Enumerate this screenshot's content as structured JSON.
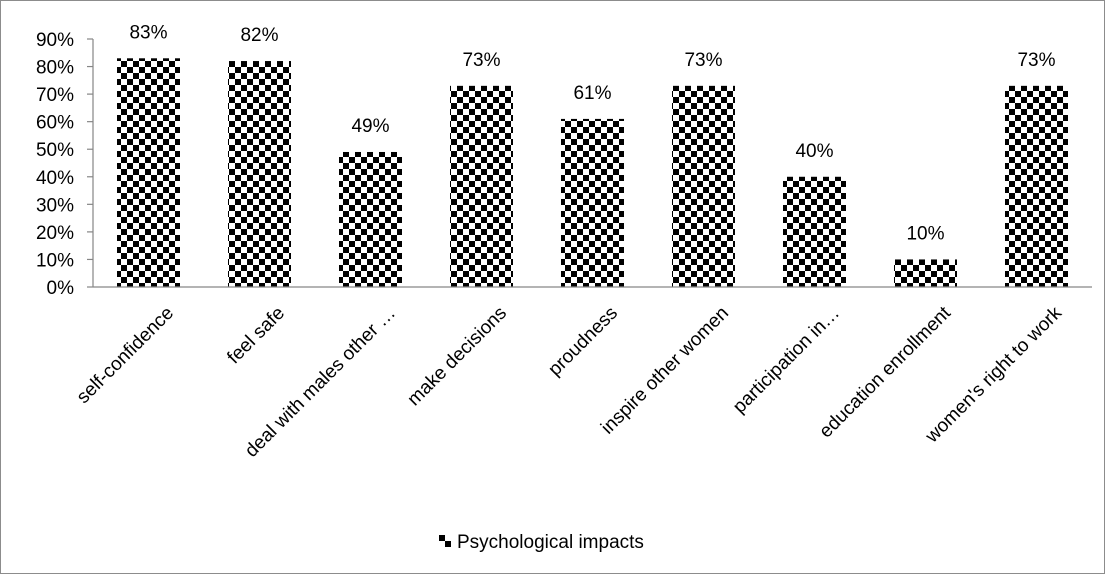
{
  "chart_data": {
    "type": "bar",
    "categories": [
      "self-confidence",
      "feel safe",
      "deal with males other …",
      "make decisions",
      "proudness",
      "inspire other women",
      "participation in…",
      "education enrollment",
      "women's right to work"
    ],
    "series": [
      {
        "name": "Psychological impacts",
        "values": [
          83,
          82,
          49,
          73,
          61,
          73,
          40,
          10,
          73
        ],
        "labels": [
          "83%",
          "82%",
          "49%",
          "73%",
          "61%",
          "73%",
          "40%",
          "10%",
          "73%"
        ]
      }
    ],
    "y_ticks": [
      "0%",
      "10%",
      "20%",
      "30%",
      "40%",
      "50%",
      "60%",
      "70%",
      "80%",
      "90%"
    ],
    "ylim": [
      0,
      90
    ],
    "grid": false,
    "legend_position": "bottom",
    "colors": {
      "bar_dark": "#000000",
      "bar_light": "#ffffff",
      "axis": "#868686"
    }
  }
}
